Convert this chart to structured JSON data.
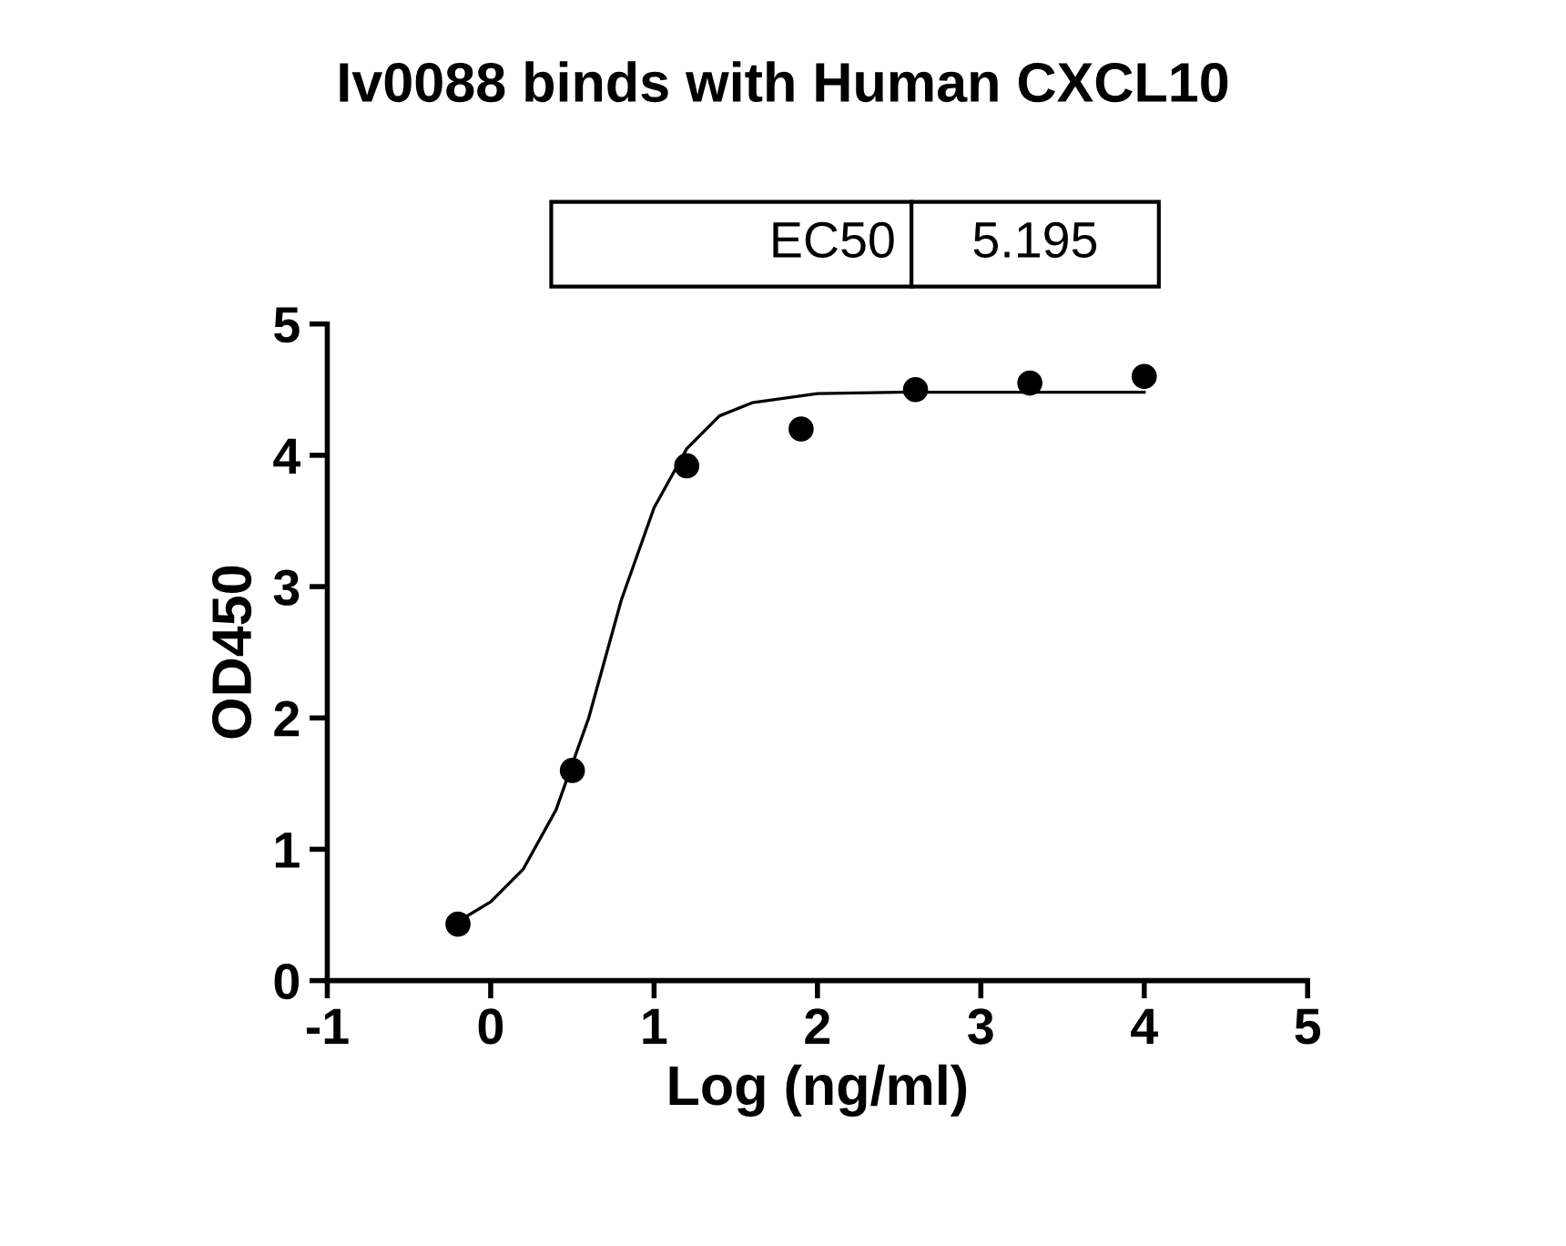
{
  "chart_data": {
    "type": "scatter",
    "title": "Iv0088 binds with Human CXCL10",
    "xlabel": "Log (ng/ml)",
    "ylabel": "OD450",
    "annotations": [
      "EC50",
      "5.195"
    ],
    "series": [
      {
        "color": "#000000",
        "marker": "circle",
        "x": [
          -0.2,
          0.5,
          1.2,
          1.9,
          2.6,
          3.3,
          4.0
        ],
        "values": [
          0.43,
          1.6,
          3.92,
          4.2,
          4.5,
          4.55,
          4.6
        ]
      },
      {
        "type": "line",
        "color": "#000000",
        "marker": "none",
        "x": [
          -0.2,
          0.0,
          0.2,
          0.4,
          0.6,
          0.8,
          1.0,
          1.2,
          1.4,
          1.6,
          2.0,
          2.5,
          4.0
        ],
        "values": [
          0.45,
          0.6,
          0.85,
          1.3,
          2.0,
          2.9,
          3.6,
          4.05,
          4.3,
          4.4,
          4.47,
          4.48,
          4.48
        ]
      }
    ],
    "xlim": [
      -1,
      5
    ],
    "xticks": [
      -1,
      0,
      1,
      2,
      3,
      4,
      5
    ],
    "ylim": [
      0,
      5
    ],
    "yticks": [
      0,
      1,
      2,
      3,
      4,
      5
    ],
    "grid": false,
    "legend": false
  }
}
